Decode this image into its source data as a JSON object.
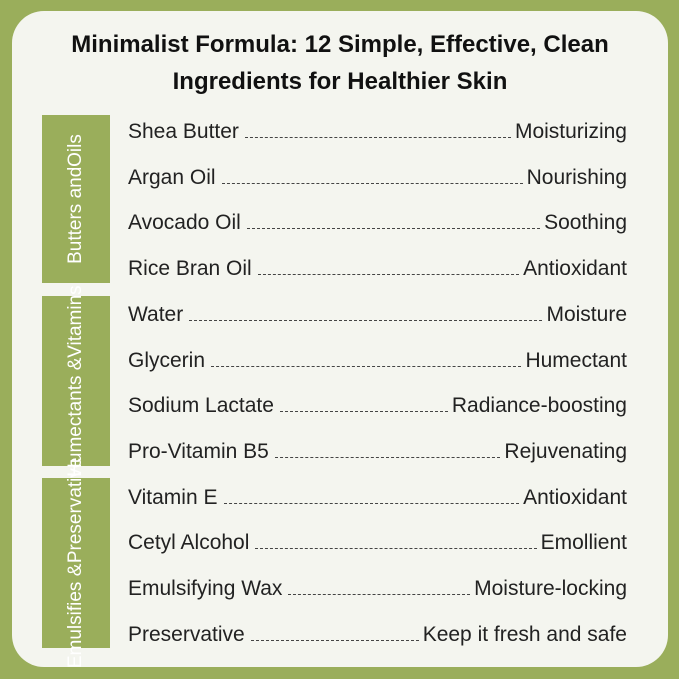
{
  "title_line1": "Minimalist Formula: 12 Simple, Effective, Clean",
  "title_line2": "Ingredients for Healthier Skin",
  "colors": {
    "accent": "#9aae5b",
    "card": "#f4f5ef"
  },
  "groups": [
    {
      "line1": "Butters and",
      "line2": "Oils"
    },
    {
      "line1": "Humectants &",
      "line2": "Vitamins"
    },
    {
      "line1": "Emulsifies &",
      "line2": "Preservative"
    }
  ],
  "ingredients": [
    {
      "name": "Shea Butter",
      "benefit": "Moisturizing"
    },
    {
      "name": "Argan Oil",
      "benefit": "Nourishing"
    },
    {
      "name": "Avocado Oil",
      "benefit": "Soothing"
    },
    {
      "name": "Rice Bran Oil",
      "benefit": "Antioxidant"
    },
    {
      "name": "Water",
      "benefit": "Moisture"
    },
    {
      "name": "Glycerin",
      "benefit": "Humectant"
    },
    {
      "name": "Sodium Lactate",
      "benefit": "Radiance-boosting"
    },
    {
      "name": "Pro-Vitamin B5",
      "benefit": "Rejuvenating"
    },
    {
      "name": "Vitamin E",
      "benefit": "Antioxidant"
    },
    {
      "name": "Cetyl Alcohol",
      "benefit": "Emollient"
    },
    {
      "name": "Emulsifying Wax",
      "benefit": "Moisture-locking"
    },
    {
      "name": "Preservative",
      "benefit": "Keep it fresh and safe"
    }
  ]
}
